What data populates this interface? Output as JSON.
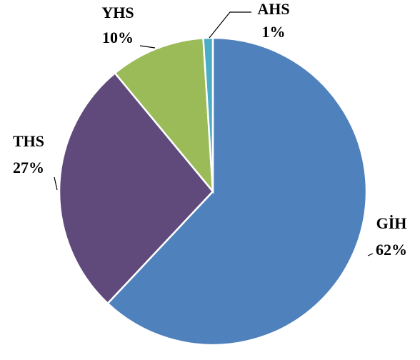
{
  "chart_data": {
    "type": "pie",
    "categories": [
      "GİH",
      "THS",
      "YHS",
      "AHS"
    ],
    "values": [
      62,
      27,
      10,
      1
    ],
    "value_labels": [
      "62%",
      "27%",
      "10%",
      "1%"
    ],
    "colors": [
      "#4f81bd",
      "#604a7b",
      "#9bbb59",
      "#4bacc6"
    ]
  }
}
